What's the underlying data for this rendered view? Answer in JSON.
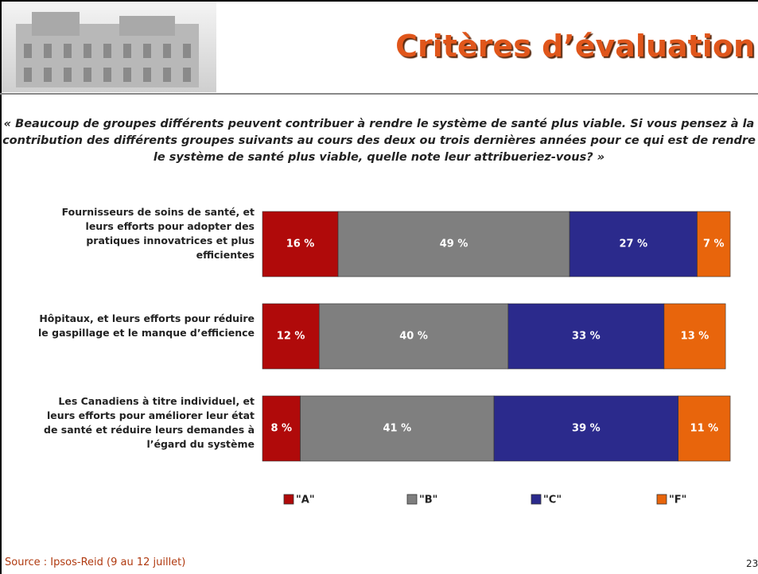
{
  "chart_data": {
    "type": "stacked-bar-horizontal",
    "title": "Critères d’évaluation",
    "subtitle": "« Beaucoup de groupes différents peuvent contribuer à rendre le système de santé plus viable. Si vous pensez à la contribution des différents groupes suivants au cours des deux ou trois dernières années pour ce qui est de rendre le système de santé plus viable, quelle note leur attribueriez-vous? »",
    "categories": [
      "Fournisseurs de soins de santé, et leurs efforts pour adopter des pratiques innovatrices et plus efficientes",
      "Hôpitaux, et leurs efforts pour réduire le gaspillage et le manque d’efficience",
      "Les Canadiens à titre individuel, et leurs efforts pour améliorer leur état de santé et réduire leurs demandes à l’égard du système"
    ],
    "series": [
      {
        "name": "\"A\"",
        "color": "#b00a0a",
        "values": [
          16,
          12,
          8
        ],
        "value_labels": [
          "16 %",
          "12 %",
          "8 %"
        ]
      },
      {
        "name": "\"B\"",
        "color": "#7f7f7f",
        "values": [
          49,
          40,
          41
        ],
        "value_labels": [
          "49 %",
          "40 %",
          "41 %"
        ]
      },
      {
        "name": "\"C\"",
        "color": "#2b2a8c",
        "values": [
          27,
          33,
          39
        ],
        "value_labels": [
          "27 %",
          "33 %",
          "39 %"
        ]
      },
      {
        "name": "\"F\"",
        "color": "#e8650c",
        "values": [
          7,
          13,
          11
        ],
        "value_labels": [
          "7 %",
          "13 %",
          "11 %"
        ]
      }
    ],
    "xlim": [
      0,
      100
    ],
    "source": "Source : Ipsos-Reid (9 au 12 juillet)",
    "page_number": "23"
  }
}
